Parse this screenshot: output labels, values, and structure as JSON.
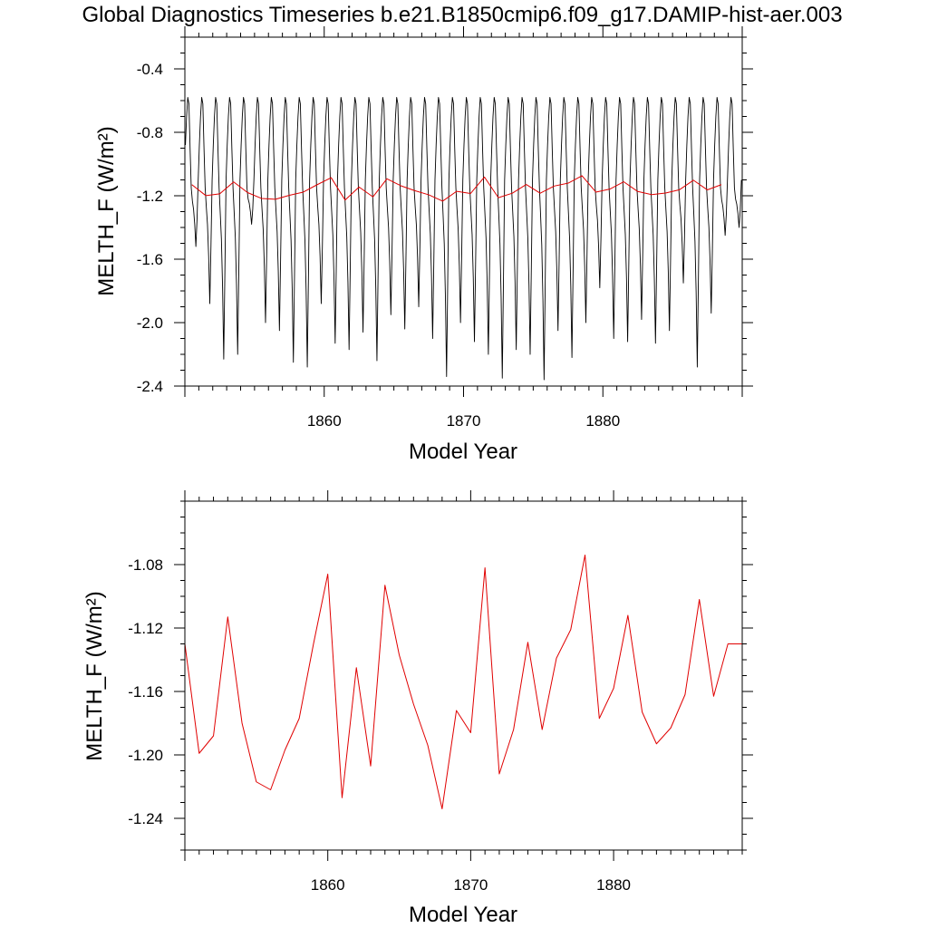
{
  "figure": {
    "title": "Global Diagnostics Timeseries b.e21.B1850cmip6.f09_g17.DAMIP-hist-aer.003"
  },
  "colors": {
    "monthly": "#000000",
    "annual": "#e00000"
  },
  "chart_data": [
    {
      "type": "line",
      "xlabel": "Model Year",
      "ylabel": "MELTH_F (W/m²)",
      "xlim": [
        1850,
        1890
      ],
      "ylim": [
        -2.4,
        -0.2
      ],
      "xticks": [
        1860,
        1870,
        1880
      ],
      "xtick_labels": [
        "1860",
        "1870",
        "1880"
      ],
      "yticks": [
        -2.4,
        -2.0,
        -1.6,
        -1.2,
        -0.8,
        -0.4
      ],
      "ytick_labels": [
        "-2.4",
        "-2.0",
        "-1.6",
        "-1.2",
        "-0.8",
        "-0.4"
      ],
      "grid": false,
      "series": [
        {
          "kind": "monthly",
          "color": "#000000",
          "x_start": 1850.04,
          "step": 0.0833,
          "seasonal_cycle": [
            -0.88,
            -0.7,
            -0.58,
            -0.62,
            -0.9,
            -1.15,
            -1.28,
            -1.4,
            -1.62,
            -1.95,
            -1.55,
            -1.1
          ],
          "annual_minima": [
            -1.52,
            -1.88,
            -2.23,
            -2.2,
            -1.38,
            -2.0,
            -2.05,
            -2.25,
            -2.28,
            -1.88,
            -2.13,
            -2.17,
            -2.06,
            -2.24,
            -1.95,
            -2.04,
            -1.9,
            -2.1,
            -2.34,
            -2.0,
            -2.12,
            -2.2,
            -2.35,
            -2.17,
            -2.2,
            -2.36,
            -2.05,
            -2.22,
            -2.0,
            -1.78,
            -2.1,
            -2.12,
            -1.98,
            -2.13,
            -2.05,
            -1.75,
            -2.28,
            -1.94,
            -1.45,
            -1.4
          ]
        },
        {
          "kind": "annual",
          "color": "#e00000",
          "x": [
            1850.5,
            1851.5,
            1852.5,
            1853.5,
            1854.5,
            1855.5,
            1856.5,
            1857.5,
            1858.5,
            1859.5,
            1860.5,
            1861.5,
            1862.5,
            1863.5,
            1864.5,
            1865.5,
            1866.5,
            1867.5,
            1868.5,
            1869.5,
            1870.5,
            1871.5,
            1872.5,
            1873.5,
            1874.5,
            1875.5,
            1876.5,
            1877.5,
            1878.5,
            1879.5,
            1880.5,
            1881.5,
            1882.5,
            1883.5,
            1884.5,
            1885.5,
            1886.5,
            1887.5,
            1888.5
          ],
          "values": [
            -1.13,
            -1.199,
            -1.188,
            -1.113,
            -1.18,
            -1.217,
            -1.222,
            -1.197,
            -1.177,
            -1.13,
            -1.086,
            -1.227,
            -1.145,
            -1.207,
            -1.093,
            -1.137,
            -1.168,
            -1.194,
            -1.234,
            -1.172,
            -1.186,
            -1.082,
            -1.212,
            -1.184,
            -1.129,
            -1.184,
            -1.139,
            -1.121,
            -1.074,
            -1.177,
            -1.158,
            -1.112,
            -1.173,
            -1.193,
            -1.183,
            -1.162,
            -1.102,
            -1.163,
            -1.13
          ]
        }
      ]
    },
    {
      "type": "line",
      "xlabel": "Model Year",
      "ylabel": "MELTH_F (W/m²)",
      "xlim": [
        1850,
        1889
      ],
      "ylim": [
        -1.26,
        -1.04
      ],
      "xticks": [
        1860,
        1870,
        1880
      ],
      "xtick_labels": [
        "1860",
        "1870",
        "1880"
      ],
      "yticks": [
        -1.24,
        -1.2,
        -1.16,
        -1.12,
        -1.08
      ],
      "ytick_labels": [
        "-1.24",
        "-1.20",
        "-1.16",
        "-1.12",
        "-1.08"
      ],
      "grid": false,
      "series": [
        {
          "kind": "annual",
          "color": "#e00000",
          "x": [
            1850.0,
            1851.0,
            1852.0,
            1853.0,
            1854.0,
            1855.0,
            1856.0,
            1857.0,
            1858.0,
            1859.0,
            1860.0,
            1861.0,
            1862.0,
            1863.0,
            1864.0,
            1865.0,
            1866.0,
            1867.0,
            1868.0,
            1869.0,
            1870.0,
            1871.0,
            1872.0,
            1873.0,
            1874.0,
            1875.0,
            1876.0,
            1877.0,
            1878.0,
            1879.0,
            1880.0,
            1881.0,
            1882.0,
            1883.0,
            1884.0,
            1885.0,
            1886.0,
            1887.0,
            1888.0,
            1889.0
          ],
          "values": [
            -1.13,
            -1.199,
            -1.188,
            -1.113,
            -1.18,
            -1.217,
            -1.222,
            -1.197,
            -1.177,
            -1.13,
            -1.086,
            -1.227,
            -1.145,
            -1.207,
            -1.093,
            -1.137,
            -1.168,
            -1.194,
            -1.234,
            -1.172,
            -1.186,
            -1.082,
            -1.212,
            -1.184,
            -1.129,
            -1.184,
            -1.139,
            -1.121,
            -1.074,
            -1.177,
            -1.158,
            -1.112,
            -1.173,
            -1.193,
            -1.183,
            -1.162,
            -1.102,
            -1.163,
            -1.13,
            -1.13
          ]
        }
      ]
    }
  ]
}
